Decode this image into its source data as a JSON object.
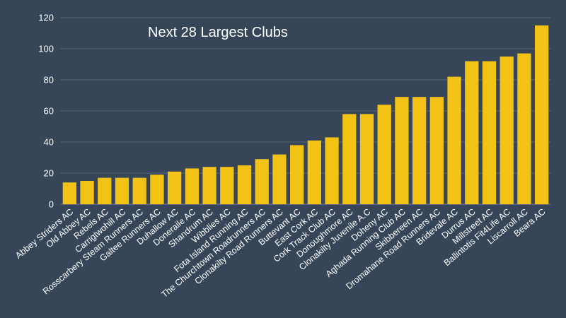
{
  "chart_data": {
    "type": "bar",
    "title": "Next 28 Largest Clubs",
    "xlabel": "",
    "ylabel": "",
    "ylim": [
      0,
      120
    ],
    "yticks": [
      0,
      20,
      40,
      60,
      80,
      100,
      120
    ],
    "grid": true,
    "legend": "none",
    "categories": [
      "Abbey Striders AC",
      "Old Abbey AC",
      "Rebels AC",
      "Carrigtwohill AC",
      "Rosscarbery Steam Runners AC",
      "Galtee Runners AC",
      "Duhallow AC",
      "Doneraile AC",
      "Shandrum AC",
      "Wibblies AC",
      "Fota Island Running AC",
      "The Churchtown Roadrunners AC",
      "Clonakilty Road Runners AC",
      "Buttevant AC",
      "East Cork AC",
      "Cork Track Club AC",
      "Donoughmore AC",
      "Clonakilty Juvenile A.C",
      "Doheny AC",
      "Aghada Running Club AC",
      "Skibbereen AC",
      "Dromahane Road Runners AC",
      "Bridevale AC",
      "Durrus AC",
      "Millstreet AC",
      "Ballintotis Fit4Life AC",
      "Liscarroll AC",
      "Beara AC"
    ],
    "values": [
      14,
      15,
      17,
      17,
      17,
      19,
      21,
      23,
      24,
      24,
      25,
      29,
      32,
      38,
      41,
      43,
      58,
      58,
      64,
      69,
      69,
      69,
      82,
      92,
      92,
      95,
      97,
      115
    ],
    "colors": {
      "bar": "#F2C314",
      "background": "#364658",
      "grid": "#5a6878",
      "text": "#ffffff"
    }
  }
}
